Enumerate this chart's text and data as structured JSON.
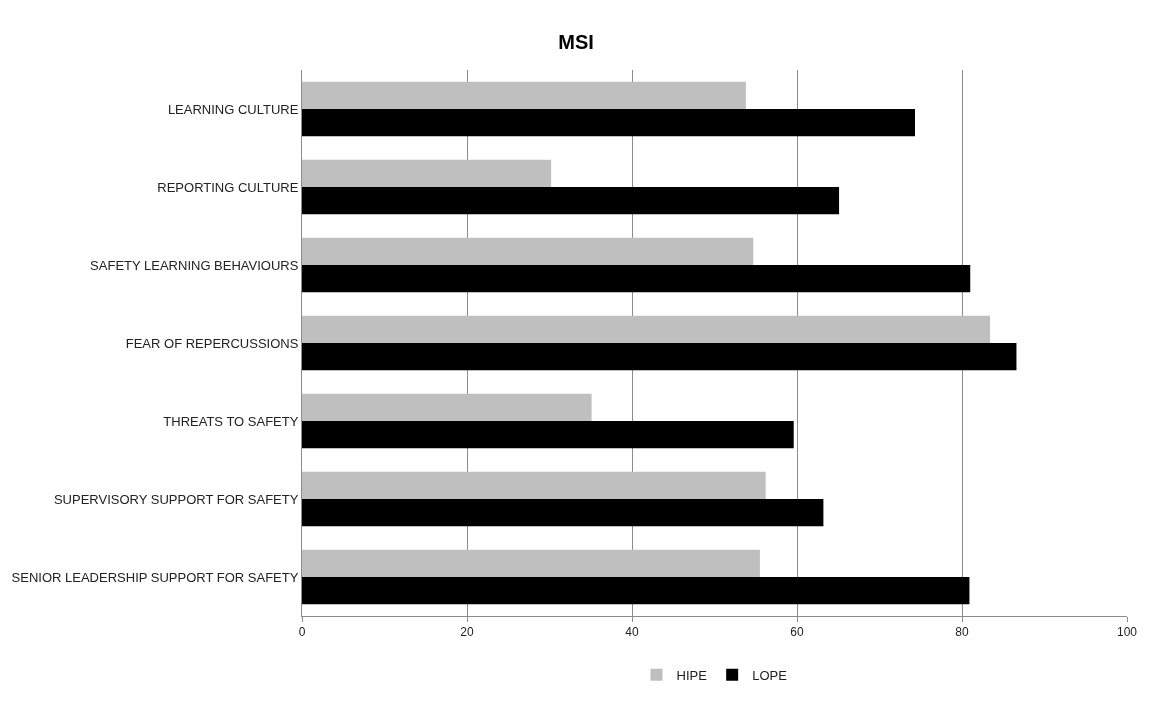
{
  "chart_data": {
    "type": "bar",
    "orientation": "horizontal",
    "title": "MSI",
    "categories": [
      "LEARNING CULTURE",
      "REPORTING CULTURE",
      "SAFETY LEARNING BEHAVIOURS",
      "FEAR OF REPERCUSSIONS",
      "THREATS TO SAFETY",
      "SUPERVISORY SUPPORT FOR SAFETY",
      "SENIOR LEADERSHIP SUPPORT FOR SAFETY"
    ],
    "series": [
      {
        "name": "HIPE",
        "color": "#bfbfbf",
        "values": [
          53.8,
          30.2,
          54.7,
          83.4,
          35.1,
          56.2,
          55.5
        ]
      },
      {
        "name": "LOPE",
        "color": "#000000",
        "values": [
          74.3,
          65.1,
          81.0,
          86.6,
          59.6,
          63.2,
          80.9
        ]
      }
    ],
    "xlim": [
      0,
      100
    ],
    "xticks": [
      0,
      20,
      40,
      60,
      80,
      100
    ],
    "grid": "x",
    "legend": "bottom"
  }
}
